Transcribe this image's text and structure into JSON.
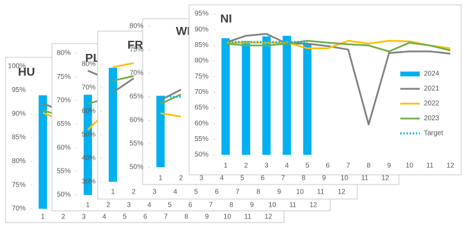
{
  "chart_data": [
    {
      "type": "combo",
      "title": "HU",
      "ylim": [
        70,
        100
      ],
      "yticks": [
        {
          "value": 100,
          "label": "100%"
        },
        {
          "value": 95,
          "label": "95%"
        },
        {
          "value": 90,
          "label": "90%"
        },
        {
          "value": 85,
          "label": "85%"
        },
        {
          "value": 80,
          "label": "80%"
        },
        {
          "value": 75,
          "label": "75%"
        },
        {
          "value": 70,
          "label": "70%"
        }
      ],
      "categories": [
        1,
        2,
        3,
        4,
        5,
        6,
        7,
        8,
        9,
        10,
        11,
        12
      ],
      "series": [
        {
          "kind": "bar",
          "color": "#00b0f0",
          "values": [
            93.9,
            null,
            null,
            null,
            null,
            null,
            null,
            null,
            null,
            null,
            null,
            null
          ]
        },
        {
          "kind": "line",
          "color": "#808080",
          "values": [
            92.2,
            90.5,
            null,
            null,
            null,
            null,
            null,
            null,
            null,
            null,
            null,
            null
          ]
        },
        {
          "kind": "line",
          "color": "#ffc000",
          "values": [
            90.2,
            88.5,
            null,
            null,
            null,
            null,
            null,
            null,
            null,
            null,
            null,
            null
          ]
        },
        {
          "kind": "line",
          "color": "#70ad47",
          "values": [
            90.7,
            89.5,
            null,
            null,
            null,
            null,
            null,
            null,
            null,
            null,
            null,
            null
          ]
        }
      ]
    },
    {
      "type": "combo",
      "title": "PL",
      "ylim": [
        50,
        80
      ],
      "yticks": [
        {
          "value": 80,
          "label": "80%"
        },
        {
          "value": 75,
          "label": "75%"
        },
        {
          "value": 70,
          "label": "70%"
        },
        {
          "value": 65,
          "label": "65%"
        },
        {
          "value": 60,
          "label": "60%"
        },
        {
          "value": 55,
          "label": "55%"
        },
        {
          "value": 50,
          "label": "50%"
        }
      ],
      "categories": [
        1,
        2,
        3,
        4,
        5,
        6,
        7,
        8,
        9,
        10,
        11,
        12
      ],
      "series": [
        {
          "kind": "bar",
          "color": "#00b0f0",
          "values": [
            71.2,
            null,
            null,
            null,
            null,
            null,
            null,
            null,
            null,
            null,
            null,
            null
          ]
        },
        {
          "kind": "line",
          "color": "#808080",
          "values": [
            76.3,
            74.5,
            null,
            null,
            null,
            null,
            null,
            null,
            null,
            null,
            null,
            null
          ]
        },
        {
          "kind": "line",
          "color": "#ffc000",
          "values": [
            63.8,
            68,
            null,
            null,
            null,
            null,
            null,
            null,
            null,
            null,
            null,
            null
          ]
        },
        {
          "kind": "line",
          "color": "#70ad47",
          "values": [
            69.3,
            70.5,
            null,
            null,
            null,
            null,
            null,
            null,
            null,
            null,
            null,
            null
          ]
        }
      ]
    },
    {
      "type": "combo",
      "title": "FRA",
      "ylim": [
        30,
        80
      ],
      "yticks": [
        {
          "value": 80,
          "label": "80%"
        },
        {
          "value": 70,
          "label": "70%"
        },
        {
          "value": 60,
          "label": "60%"
        },
        {
          "value": 50,
          "label": "50%"
        },
        {
          "value": 40,
          "label": "40%"
        },
        {
          "value": 30,
          "label": "30%"
        }
      ],
      "categories": [
        1,
        2,
        3,
        4,
        5,
        6,
        7,
        8,
        9,
        10,
        11,
        12
      ],
      "series": [
        {
          "kind": "bar",
          "color": "#00b0f0",
          "values": [
            78.5,
            null,
            null,
            null,
            null,
            null,
            null,
            null,
            null,
            null,
            null,
            null
          ]
        },
        {
          "kind": "line",
          "color": "#808080",
          "values": [
            68,
            74,
            null,
            null,
            null,
            null,
            null,
            null,
            null,
            null,
            null,
            null
          ]
        },
        {
          "kind": "line",
          "color": "#ffc000",
          "values": [
            78.8,
            80.5,
            null,
            null,
            null,
            null,
            null,
            null,
            null,
            null,
            null,
            null
          ]
        },
        {
          "kind": "line",
          "color": "#70ad47",
          "values": [
            73,
            75,
            null,
            null,
            null,
            null,
            null,
            null,
            null,
            null,
            null,
            null
          ]
        }
      ]
    },
    {
      "type": "combo",
      "title": "WE",
      "ylim": [
        50,
        80
      ],
      "yticks": [
        {
          "value": 80,
          "label": "80%"
        },
        {
          "value": 75,
          "label": "75%"
        },
        {
          "value": 70,
          "label": "70%"
        },
        {
          "value": 65,
          "label": "65%"
        },
        {
          "value": 60,
          "label": "60%"
        },
        {
          "value": 55,
          "label": "55%"
        },
        {
          "value": 50,
          "label": "50%"
        }
      ],
      "categories": [
        1,
        2,
        3,
        4,
        5,
        6,
        7,
        8,
        9,
        10,
        11,
        12
      ],
      "series": [
        {
          "kind": "bar",
          "color": "#00b0f0",
          "values": [
            65.2,
            null,
            null,
            null,
            null,
            null,
            null,
            null,
            null,
            null,
            null,
            null
          ]
        },
        {
          "kind": "line",
          "color": "#808080",
          "values": [
            64.3,
            66.5,
            null,
            null,
            null,
            null,
            null,
            null,
            null,
            null,
            null,
            null
          ]
        },
        {
          "kind": "line",
          "color": "#ffc000",
          "values": [
            61.5,
            60.8,
            null,
            null,
            null,
            null,
            null,
            null,
            null,
            null,
            null,
            null
          ]
        },
        {
          "kind": "line",
          "color": "#70ad47",
          "values": [
            63.5,
            65.5,
            null,
            null,
            null,
            null,
            null,
            null,
            null,
            null,
            null,
            null
          ]
        },
        {
          "kind": "line",
          "dotted": true,
          "color": "#00b0f0",
          "values": [
            65,
            65,
            null,
            null,
            null,
            null,
            null,
            null,
            null,
            null,
            null,
            null
          ]
        }
      ]
    },
    {
      "type": "combo",
      "title": "NI",
      "ylim": [
        50,
        95
      ],
      "legend": "right",
      "yticks": [
        {
          "value": 95,
          "label": "95%"
        },
        {
          "value": 90,
          "label": "90%"
        },
        {
          "value": 85,
          "label": "85%"
        },
        {
          "value": 80,
          "label": "80%"
        },
        {
          "value": 75,
          "label": "75%"
        },
        {
          "value": 70,
          "label": "70%"
        },
        {
          "value": 65,
          "label": "65%"
        },
        {
          "value": 60,
          "label": "60%"
        },
        {
          "value": 55,
          "label": "55%"
        },
        {
          "value": 50,
          "label": "50%"
        }
      ],
      "categories": [
        1,
        2,
        3,
        4,
        5,
        6,
        7,
        8,
        9,
        10,
        11,
        12
      ],
      "series": [
        {
          "kind": "bar",
          "name": "2024",
          "color": "#00b0f0",
          "values": [
            87.2,
            86.3,
            87.8,
            88.0,
            85.4,
            null,
            null,
            null,
            null,
            null,
            null,
            null
          ]
        },
        {
          "kind": "line",
          "name": "2021",
          "color": "#808080",
          "values": [
            85.8,
            88,
            88.6,
            85.5,
            85.5,
            84.7,
            83.6,
            59.7,
            82.5,
            83,
            83,
            82.3
          ]
        },
        {
          "kind": "line",
          "name": "2022",
          "color": "#ffc000",
          "values": [
            85.8,
            85.8,
            85.8,
            85.8,
            84,
            84,
            86.4,
            85.5,
            86.4,
            86.2,
            84.9,
            84
          ]
        },
        {
          "kind": "line",
          "name": "2023",
          "color": "#70ad47",
          "values": [
            85.5,
            84.9,
            84.9,
            85.5,
            86.4,
            85.8,
            85.3,
            84.9,
            83,
            85.8,
            84.9,
            83.3
          ]
        },
        {
          "kind": "line",
          "name": "Target",
          "dotted": true,
          "color": "#00b0f0",
          "values": [
            86,
            86,
            86,
            86,
            86,
            null,
            null,
            null,
            null,
            null,
            null,
            null
          ]
        }
      ]
    }
  ]
}
